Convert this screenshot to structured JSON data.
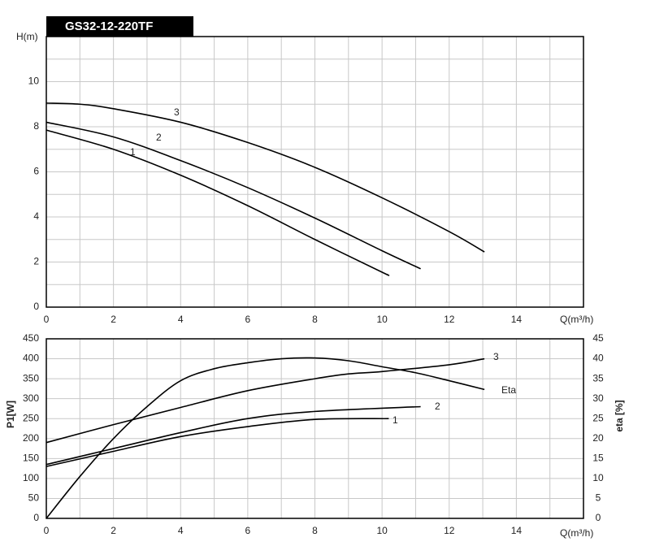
{
  "chart_data": [
    {
      "type": "line",
      "title": "GS32-12-220TF",
      "ylabel": "H(m)",
      "xlabel": "Q(m³/h)",
      "xlim": [
        0,
        16
      ],
      "ylim": [
        0,
        12
      ],
      "xticks": [
        0,
        2,
        4,
        6,
        8,
        10,
        12,
        14
      ],
      "yticks": [
        0,
        2,
        4,
        6,
        8,
        10
      ],
      "xgrid": [
        1,
        2,
        3,
        4,
        5,
        6,
        7,
        8,
        9,
        10,
        11,
        12,
        13,
        14,
        15
      ],
      "ygrid": [
        1,
        2,
        3,
        4,
        5,
        6,
        7,
        8,
        9,
        10,
        11
      ],
      "series": [
        {
          "name": "1",
          "color": "#000000",
          "x": [
            0,
            2,
            4,
            6,
            8,
            10,
            10.15
          ],
          "values": [
            7.85,
            7.0,
            5.85,
            4.5,
            3.0,
            1.55,
            1.45
          ]
        },
        {
          "name": "2",
          "color": "#000000",
          "x": [
            0,
            2,
            4,
            6,
            8,
            10,
            11.15
          ],
          "values": [
            8.2,
            7.55,
            6.5,
            5.3,
            3.95,
            2.5,
            1.7
          ]
        },
        {
          "name": "3",
          "color": "#000000",
          "x": [
            0,
            1,
            2,
            4,
            6,
            8,
            10,
            12,
            13.05
          ],
          "values": [
            9.05,
            9.0,
            8.8,
            8.2,
            7.3,
            6.2,
            4.85,
            3.35,
            2.45
          ]
        }
      ]
    },
    {
      "type": "line",
      "ylabel": "P1[W]",
      "y2label": "eta  [%]",
      "xlabel": "Q(m³/h)",
      "xlim": [
        0,
        16
      ],
      "ylim": [
        0,
        450
      ],
      "y2lim": [
        0,
        45
      ],
      "xticks": [
        0,
        2,
        4,
        6,
        8,
        10,
        12,
        14
      ],
      "yticks": [
        0,
        50,
        100,
        150,
        200,
        250,
        300,
        350,
        400,
        450
      ],
      "y2ticks": [
        0,
        5,
        10,
        15,
        20,
        25,
        30,
        35,
        40,
        45
      ],
      "xgrid": [
        1,
        2,
        3,
        4,
        5,
        6,
        7,
        8,
        9,
        10,
        11,
        12,
        13,
        14,
        15
      ],
      "series": [
        {
          "name": "1",
          "color": "#000000",
          "x": [
            0,
            2,
            4,
            6,
            8,
            10.2
          ],
          "values": [
            130,
            168,
            205,
            230,
            248,
            250
          ]
        },
        {
          "name": "2",
          "color": "#000000",
          "x": [
            0,
            2,
            4,
            6,
            8,
            11.15
          ],
          "values": [
            135,
            175,
            215,
            250,
            268,
            280
          ]
        },
        {
          "name": "3",
          "color": "#000000",
          "x": [
            0,
            2,
            4,
            6,
            8,
            9,
            10,
            12,
            13.05
          ],
          "values": [
            190,
            235,
            278,
            320,
            350,
            362,
            368,
            385,
            400
          ]
        },
        {
          "name": "Eta",
          "color": "#000000",
          "axis": "y2",
          "x": [
            0,
            1,
            2,
            3,
            4,
            5,
            6,
            7,
            8,
            9,
            10,
            11,
            12,
            13.05
          ],
          "values": [
            0,
            10.5,
            20,
            28,
            34.5,
            37.5,
            39,
            40,
            40.2,
            39.5,
            38,
            36.5,
            34.5,
            32.3
          ]
        }
      ]
    }
  ]
}
